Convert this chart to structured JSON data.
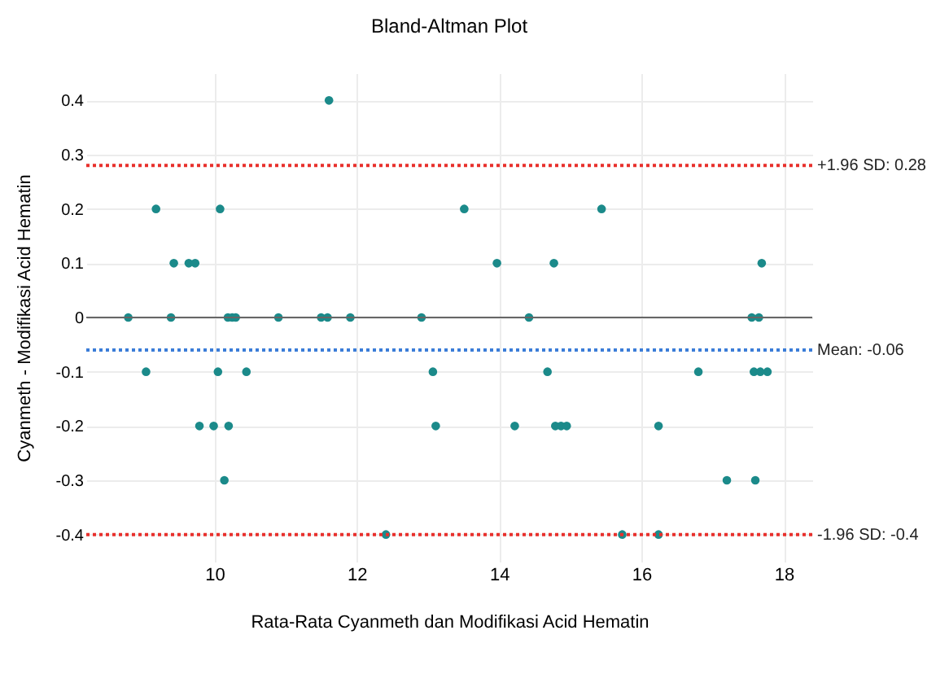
{
  "chart_data": {
    "type": "scatter",
    "title": "Bland-Altman Plot",
    "xlabel": "Rata-Rata Cyanmeth dan Modifikasi Acid Hematin",
    "ylabel": "Cyanmeth - Modifikasi Acid Hematin",
    "x": [
      11.61,
      9.18,
      10.08,
      9.43,
      9.64,
      9.73,
      8.79,
      9.39,
      10.19,
      10.25,
      10.3,
      10.9,
      11.5,
      11.59,
      11.91,
      9.04,
      10.05,
      10.45,
      9.79,
      9.99,
      10.2,
      10.14,
      12.41,
      13.51,
      15.44,
      13.97,
      14.77,
      12.91,
      14.42,
      13.07,
      14.68,
      13.11,
      14.22,
      14.79,
      14.87,
      14.95,
      16.24,
      15.73,
      16.24,
      17.69,
      17.55,
      17.65,
      16.8,
      17.58,
      17.67,
      17.77,
      17.2,
      17.6
    ],
    "series": [
      {
        "color": "#1b8a8a",
        "values": [
          0.4,
          0.2,
          0.2,
          0.1,
          0.1,
          0.1,
          0,
          0,
          0,
          0,
          0,
          0,
          0,
          0,
          0,
          -0.1,
          -0.1,
          -0.1,
          -0.2,
          -0.2,
          -0.2,
          -0.3,
          -0.4,
          0.2,
          0.2,
          0.1,
          0.1,
          0,
          0,
          -0.1,
          -0.1,
          -0.2,
          -0.2,
          -0.2,
          -0.2,
          -0.2,
          -0.2,
          -0.4,
          -0.4,
          0.1,
          0,
          0,
          -0.1,
          -0.1,
          -0.1,
          -0.1,
          -0.3,
          -0.3
        ]
      }
    ],
    "xlim": [
      8.2,
      18.4
    ],
    "ylim": [
      -0.45,
      0.45
    ],
    "xticks": [
      10,
      12,
      14,
      16,
      18
    ],
    "yticks": [
      -0.4,
      -0.3,
      -0.2,
      -0.1,
      0,
      0.1,
      0.2,
      0.3,
      0.4
    ],
    "ref_lines": [
      {
        "axis": "y",
        "value": 0,
        "color": "#666666",
        "line_style": "solid"
      },
      {
        "axis": "y",
        "value": 0.28,
        "label": "+1.96 SD: 0.28",
        "color": "#e8302c",
        "line_style": "dotted"
      },
      {
        "axis": "y",
        "value": -0.06,
        "label": "Mean: -0.06",
        "color": "#3b7dd8",
        "line_style": "dotted"
      },
      {
        "axis": "y",
        "value": -0.4,
        "label": "-1.96 SD: -0.4",
        "color": "#e8302c",
        "line_style": "dotted"
      }
    ],
    "grid": true,
    "marker": "circle"
  }
}
